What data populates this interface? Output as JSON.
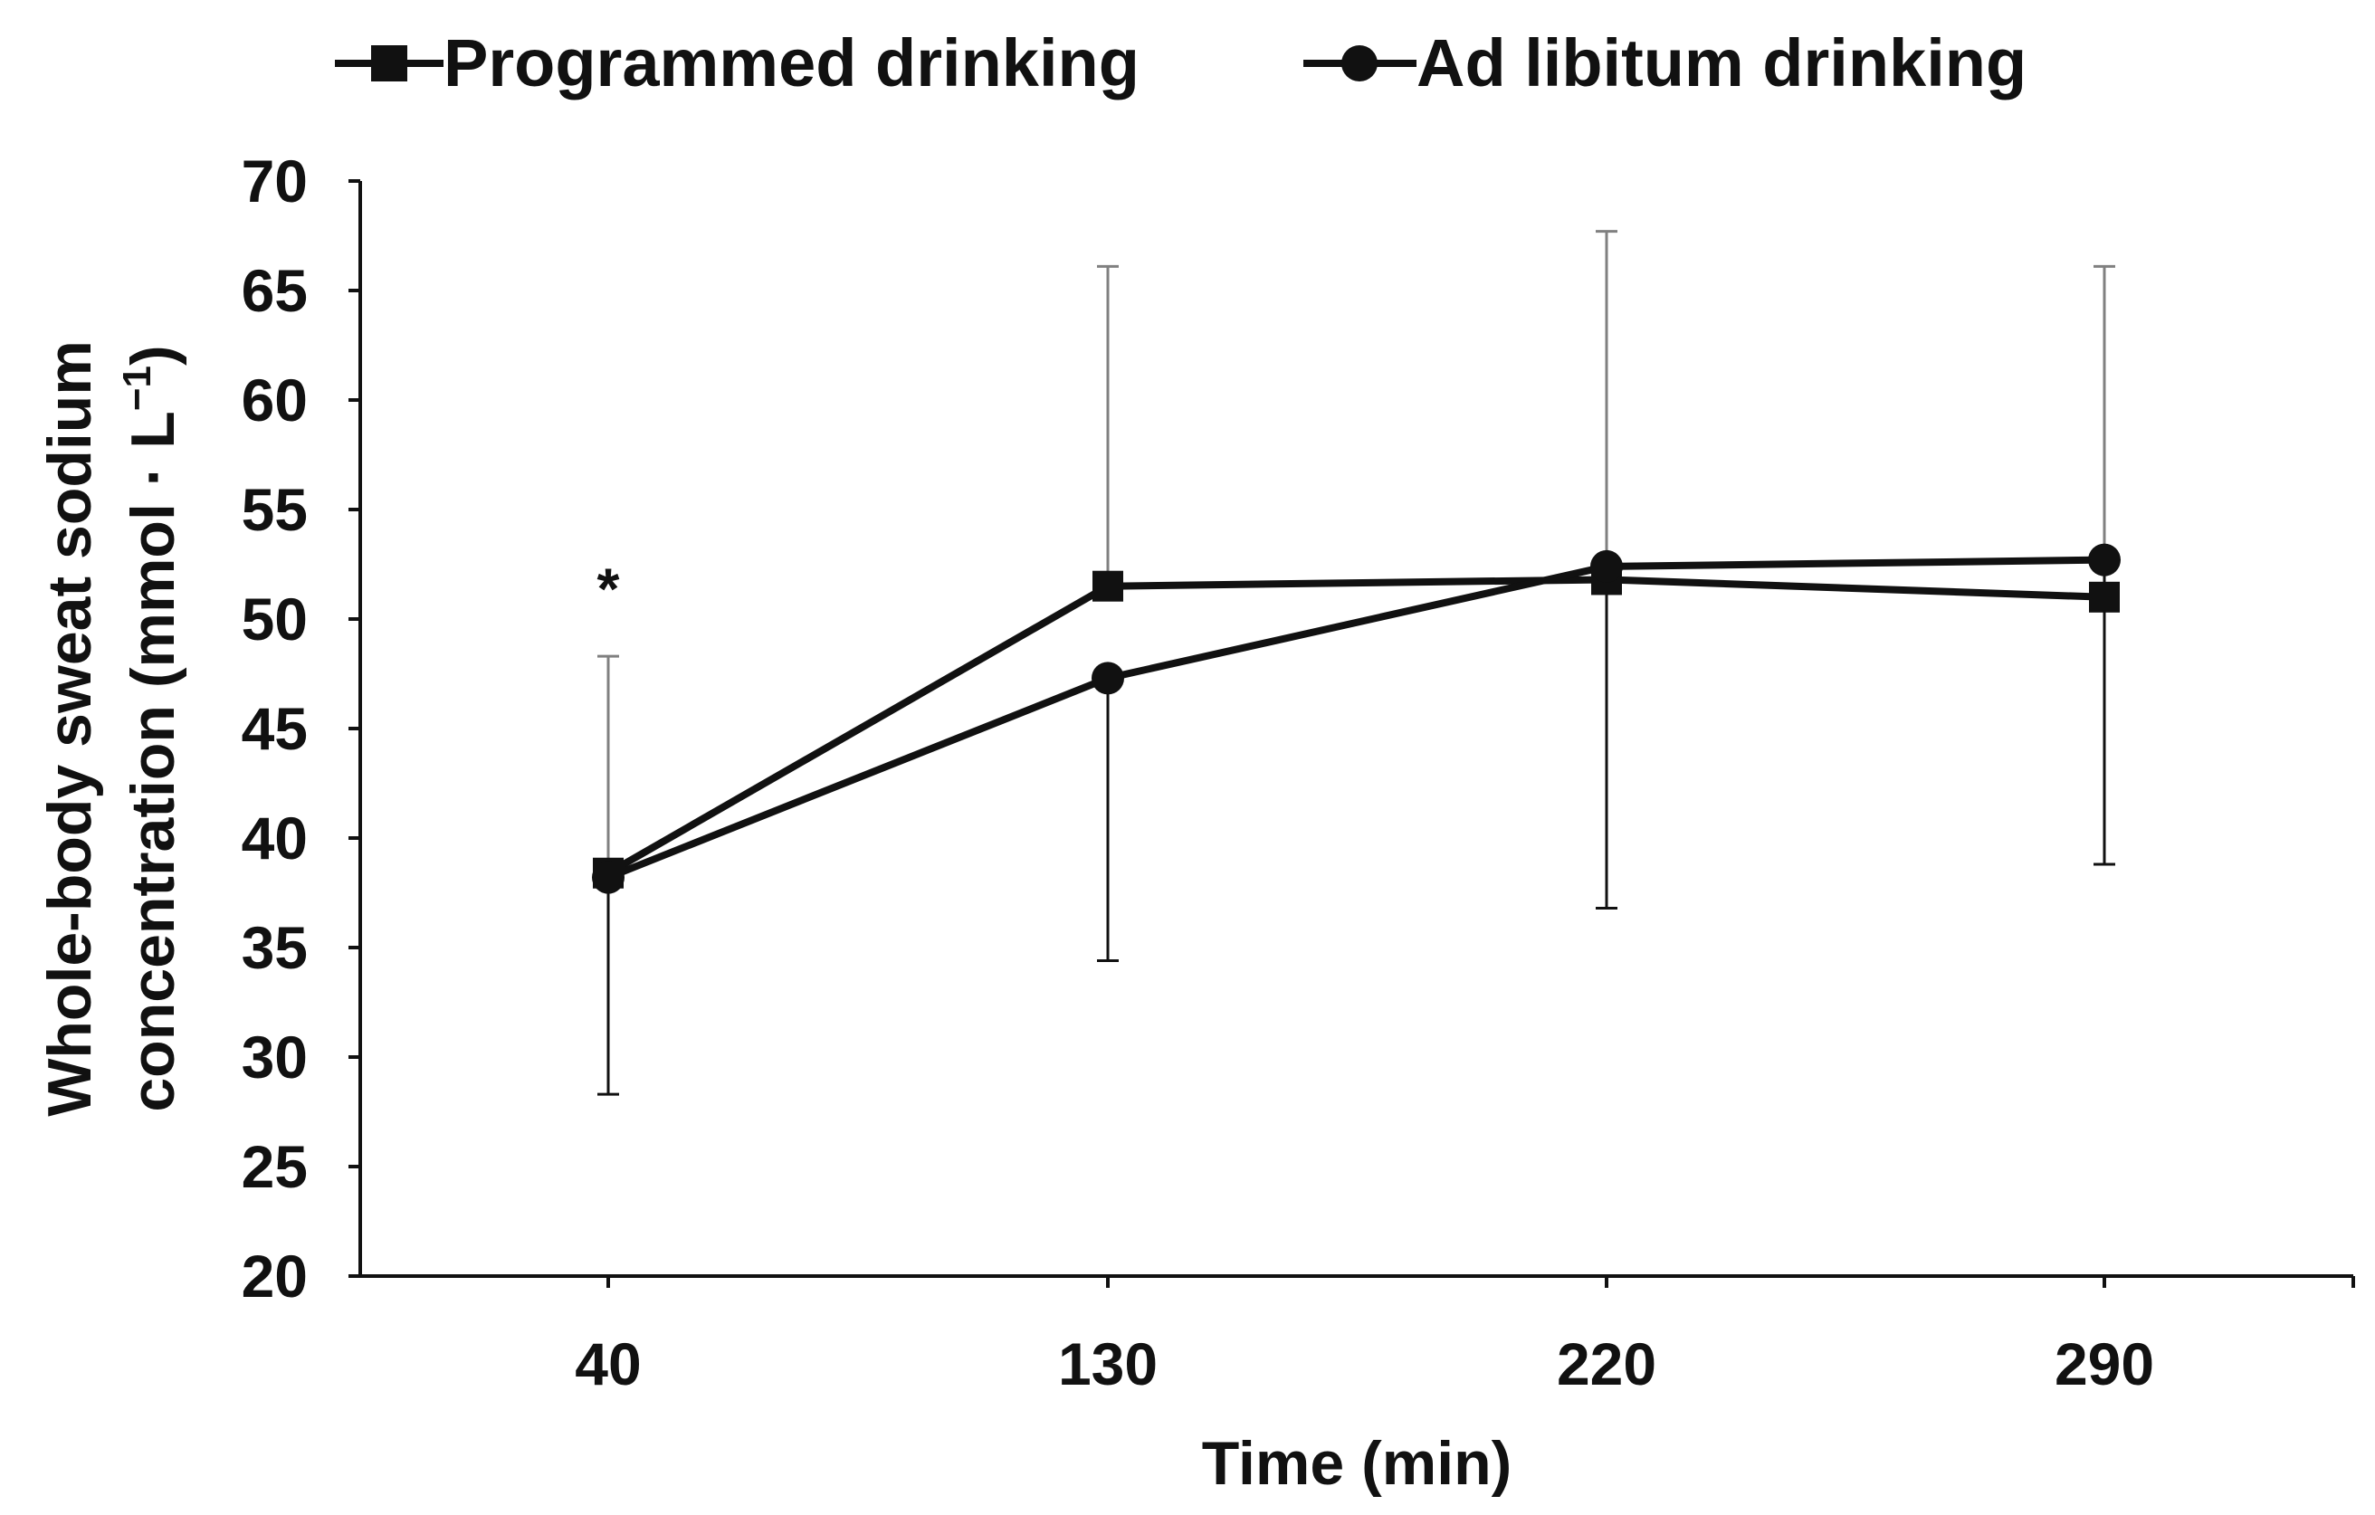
{
  "chart_data": {
    "type": "line",
    "title": "",
    "xlabel": "Time (min)",
    "ylabel_line1": "Whole-body sweat sodium",
    "ylabel_line2": "concentration (mmol · L",
    "ylabel_superscript": "−1",
    "ylabel_close": ")",
    "categories": [
      "40",
      "130",
      "220",
      "290"
    ],
    "ylim": [
      20,
      70
    ],
    "yticks": [
      20,
      25,
      30,
      35,
      40,
      45,
      50,
      55,
      60,
      65,
      70
    ],
    "grid": false,
    "legend_position": "top",
    "series": [
      {
        "name": "Programmed drinking",
        "marker": "square",
        "values": [
          38.4,
          51.5,
          51.8,
          51.0
        ],
        "error_upper": [
          48.3,
          66.1,
          67.7,
          66.1
        ],
        "error_lower": null
      },
      {
        "name": "Ad libitum drinking",
        "marker": "circle",
        "values": [
          38.2,
          47.3,
          52.4,
          52.7
        ],
        "error_upper": null,
        "error_lower": [
          28.3,
          34.4,
          36.8,
          38.8
        ]
      }
    ],
    "annotations": [
      {
        "category": "40",
        "value": 51.5,
        "text": "*"
      }
    ],
    "colors": {
      "line": "#111111",
      "upper_error": "#808080",
      "lower_error": "#111111"
    }
  }
}
